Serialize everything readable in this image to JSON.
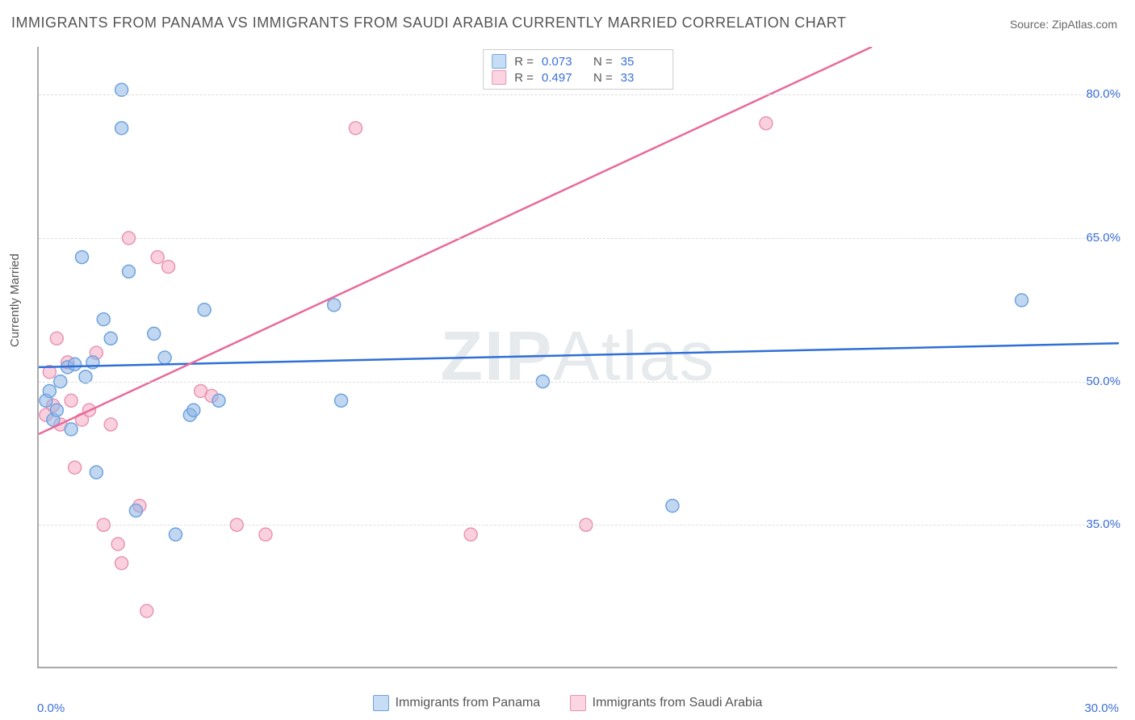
{
  "title": "IMMIGRANTS FROM PANAMA VS IMMIGRANTS FROM SAUDI ARABIA CURRENTLY MARRIED CORRELATION CHART",
  "source": "Source: ZipAtlas.com",
  "watermark_bold": "ZIP",
  "watermark_rest": "Atlas",
  "ylabel": "Currently Married",
  "x_axis": {
    "min": 0.0,
    "max": 30.0,
    "ticks": [
      0.0,
      30.0
    ],
    "labels": [
      "0.0%",
      "30.0%"
    ]
  },
  "y_axis": {
    "min": 20.0,
    "max": 85.0,
    "ticks": [
      35.0,
      50.0,
      65.0,
      80.0
    ],
    "labels": [
      "35.0%",
      "50.0%",
      "65.0%",
      "80.0%"
    ]
  },
  "grid_color": "#dddddd",
  "axis_color": "#aaaaaa",
  "tick_label_color": "#3b6fd6",
  "series": [
    {
      "name": "Immigrants from Panama",
      "color_fill": "rgba(140,180,230,0.55)",
      "color_stroke": "#6fa3dd",
      "swatch_fill": "#c7ddf5",
      "swatch_stroke": "#6fa3dd",
      "r_label": "R =",
      "r_value": "0.073",
      "n_label": "N =",
      "n_value": "35",
      "trend": {
        "color": "#2f6fd6",
        "width": 2.5,
        "y_at_xmin": 51.5,
        "y_at_xmax": 54.0
      },
      "marker_radius": 8,
      "points": [
        [
          0.2,
          48.0
        ],
        [
          0.3,
          49.0
        ],
        [
          0.4,
          46.0
        ],
        [
          0.5,
          47.0
        ],
        [
          0.6,
          50.0
        ],
        [
          0.8,
          51.5
        ],
        [
          0.9,
          45.0
        ],
        [
          1.0,
          51.8
        ],
        [
          1.2,
          63.0
        ],
        [
          1.3,
          50.5
        ],
        [
          1.5,
          52.0
        ],
        [
          1.6,
          40.5
        ],
        [
          1.8,
          56.5
        ],
        [
          2.0,
          54.5
        ],
        [
          2.3,
          80.5
        ],
        [
          2.3,
          76.5
        ],
        [
          2.5,
          61.5
        ],
        [
          2.7,
          36.5
        ],
        [
          3.2,
          55.0
        ],
        [
          3.5,
          52.5
        ],
        [
          3.8,
          34.0
        ],
        [
          4.2,
          46.5
        ],
        [
          4.3,
          47.0
        ],
        [
          4.6,
          57.5
        ],
        [
          5.0,
          48.0
        ],
        [
          8.2,
          58.0
        ],
        [
          8.4,
          48.0
        ],
        [
          14.0,
          50.0
        ],
        [
          17.6,
          37.0
        ],
        [
          27.3,
          58.5
        ]
      ]
    },
    {
      "name": "Immigrants from Saudi Arabia",
      "color_fill": "rgba(245,170,195,0.55)",
      "color_stroke": "#e795b4",
      "swatch_fill": "#fcd5e3",
      "swatch_stroke": "#e795b4",
      "r_label": "R =",
      "r_value": "0.497",
      "n_label": "N =",
      "n_value": "33",
      "trend": {
        "color": "#e86a9a",
        "width": 2.5,
        "y_at_xmin": 44.5,
        "y_at_xmax": 97.0
      },
      "marker_radius": 8,
      "points": [
        [
          0.2,
          46.5
        ],
        [
          0.3,
          51.0
        ],
        [
          0.4,
          47.5
        ],
        [
          0.5,
          54.5
        ],
        [
          0.6,
          45.5
        ],
        [
          0.8,
          52.0
        ],
        [
          0.9,
          48.0
        ],
        [
          1.0,
          41.0
        ],
        [
          1.2,
          46.0
        ],
        [
          1.4,
          47.0
        ],
        [
          1.6,
          53.0
        ],
        [
          1.8,
          35.0
        ],
        [
          2.0,
          45.5
        ],
        [
          2.2,
          33.0
        ],
        [
          2.3,
          31.0
        ],
        [
          2.5,
          65.0
        ],
        [
          2.8,
          37.0
        ],
        [
          3.0,
          26.0
        ],
        [
          3.3,
          63.0
        ],
        [
          3.6,
          62.0
        ],
        [
          4.5,
          49.0
        ],
        [
          4.8,
          48.5
        ],
        [
          5.5,
          35.0
        ],
        [
          6.3,
          34.0
        ],
        [
          8.8,
          76.5
        ],
        [
          12.0,
          34.0
        ],
        [
          15.2,
          35.0
        ],
        [
          20.2,
          77.0
        ]
      ]
    }
  ],
  "x_tick_marks": [
    2,
    4,
    6,
    8,
    10,
    12,
    14,
    16,
    18,
    20,
    22,
    24,
    26,
    28
  ]
}
